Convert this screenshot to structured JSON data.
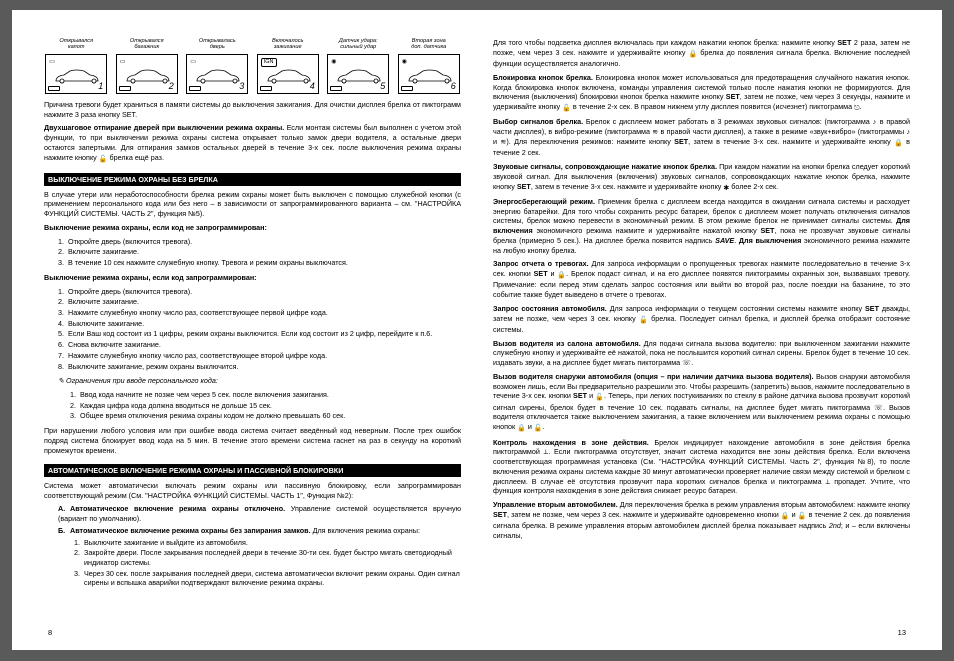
{
  "icons": [
    {
      "caption": "Открывался\nкапот",
      "num": "1",
      "top": "▭"
    },
    {
      "caption": "Открывался\nбагажник",
      "num": "2",
      "top": "▭"
    },
    {
      "caption": "Открывалась\nдверь",
      "num": "3",
      "top": "▭"
    },
    {
      "caption": "Включалось\nзажигание",
      "num": "4",
      "top": "IGN"
    },
    {
      "caption": "Датчик удара:\nсильный удар",
      "num": "5",
      "top": "⚲"
    },
    {
      "caption": "Вторая зона\nдоп. датчика",
      "num": "6",
      "top": "⚲"
    }
  ],
  "lock": "🔒",
  "unlock": "🔓",
  "star": "✱",
  "left": {
    "p1": "Причина тревоги будет храниться в памяти системы до выключения зажигания. Для очистки дисплея брелка от пиктограмм нажмите 3 раза кнопку SET.",
    "p2a": "Двухшаговое отпирание дверей при выключении режима охраны.",
    "p2b": " Если монтаж системы был выполнен с учетом этой функции, то при выключении режима охраны система открывает только замок двери водителя, а остальные двери остаются запертыми. Для отпирания замков остальных дверей в течение 3-х сек. после выключения режима охраны нажмите кнопку ",
    "p2c": " брелка ещё раз.",
    "h1": "ВЫКЛЮЧЕНИЕ РЕЖИМА ОХРАНЫ БЕЗ БРЕЛКА",
    "p3": "В случае утери или неработоспособности брелка режим охраны может быть выключен с помощью служебной кнопки (с применением персонального кода или без него – в зависимости от запрограммированного варианта – см. \"НАСТРОЙКА ФУНКЦИЙ СИСТЕМЫ. ЧАСТЬ 2\", функция №5).",
    "s1": "Выключение режима охраны, если код не запрограммирован:",
    "ol1": [
      "Откройте дверь (включится тревога).",
      "Включите зажигание.",
      "В течение 10 сек нажмите служебную кнопку. Тревога и режим охраны выключатся."
    ],
    "s2": "Выключение режима охраны, если код запрограммирован:",
    "ol2": [
      "Откройте дверь (включится тревога).",
      "Включите зажигание.",
      "Нажмите служебную кнопку число раз, соответствующее первой цифре кода.",
      "Выключите зажигание.",
      "Если Ваш код состоит из 1 цифры, режим охраны выключится. Если код состоит из 2 цифр, перейдите к п.6.",
      "Снова включите зажигание.",
      "Нажмите служебную кнопку число раз, соответствующее второй цифре кода.",
      "Выключите зажигание, режим охраны выключится."
    ],
    "limhd": "Ограничения при вводе персонального кода:",
    "lim": [
      "Ввод кода начните не позже чем через 5 сек. после включения зажигания.",
      "Каждая цифра кода должна вводиться не дольше 15 сек.",
      "Общее время отключения режима охраны кодом не должно превышать 60 сек."
    ],
    "p4": "При нарушении любого условия или при ошибке ввода система считает введённый код неверным. После трех ошибок подряд система блокирует ввод кода на 5 мин. В течение этого времени система гаснет на раз в секунду на короткий промежуток времени.",
    "h2": "АВТОМАТИЧЕСКОЕ ВКЛЮЧЕНИЕ РЕЖИМА ОХРАНЫ И ПАССИВНОЙ БЛОКИРОВКИ",
    "p5": "Система может автоматически включать режим охраны или пассивную блокировку, если запрограммирован соответствующий режим (См. \"НАСТРОЙКА ФУНКЦИЙ СИСТЕМЫ. ЧАСТЬ 1\", Функция №2):",
    "Aa": "А.",
    "Ab": "Автоматическое включение режима охраны отключено.",
    "Ac": " Управление системой осуществляется вручную (вариант по умолчанию).",
    "Ba": "Б.",
    "Bb": "Автоматическое включение режима охраны без запирания замков.",
    "Bc": " Для включения режима охраны:",
    "Bol": [
      "Выключите зажигание и выйдите из автомобиля.",
      "Закройте двери. После закрывания последней двери в течение 30-ти сек. будет быстро мигать светодиодный индикатор системы.",
      "Через 30 сек. после закрывания последней двери, система автоматически включит режим охраны. Один сигнал сирены и вспышка аварийки подтверждают включение режима охраны."
    ],
    "page": "8"
  },
  "right": {
    "p1a": "Для того чтобы подсветка дисплея включалась при каждом нажатии кнопок брелка: нажмите кнопку ",
    "p1b": "SET",
    "p1c": " 2 раза, затем не позже, чем через 3 сек. нажмите и удерживайте кнопку ",
    "p1d": " брелка до появления сигнала брелка. Включение последней функции осуществляется аналогично.",
    "p2a": "Блокировка кнопок брелка.",
    "p2b": " Блокировка кнопок может использоваться для предотвращения случайного нажатия кнопок. Когда блокировка кнопок включена, команды управления системой только после нажатия кнопки не формируются. Для включения (выключения) блокировки кнопок брелка нажмите кнопку ",
    "p2c": "SET",
    "p2d": ", затем не позже, чем через 3 секунды, нажмите и удерживайте кнопку ",
    "p2e": " в течение 2-х сек. В правом нижнем углу дисплея появится (исчезнет) пиктограмма ",
    "p3a": "Выбор сигналов брелка.",
    "p3b": " Брелок с дисплеем может работать в 3 режимах звуковых сигналов: (пиктограмма ",
    "p3c": " в правой части дисплея), в вибро-режиме (пиктограмма ",
    "p3d": " в правой части дисплея), а также в режиме «звук+вибро» (пиктограммы ",
    "p3e": " и ",
    "p3f": "). Для переключения режимов: нажмите кнопку ",
    "p3g": "SET",
    "p3h": ", затем в течение 3-х сек. нажмите и удерживайте кнопку ",
    "p3i": " в течение 2 сек.",
    "p4a": "Звуковые сигналы, сопровождающие нажатие кнопок брелка.",
    "p4b": " При каждом нажатии на кнопки брелка следует короткий звуковой сигнал. Для выключения (включения) звуковых сигналов, сопровождающих нажатие кнопок брелка, нажмите кнопку ",
    "p4c": "SET",
    "p4d": ", затем в течение 3-х сек. нажмите и удерживайте кнопку ",
    "p4e": " более 2-х сек.",
    "p5a": "Энергосберегающий режим.",
    "p5b": " Приемник брелка с дисплеем всегда находится в ожидании сигнала системы и расходует энергию батарейки. Для того чтобы сохранить ресурс батареи, брелок с дисплеем может получать отключения сигналов системы, брелок можно перевести в экономичный режим. В этом режиме брелок не принимает сигналы системы. ",
    "p5c": "Для включения",
    "p5d": " экономичного режима нажмите и удерживайте нажатой кнопку ",
    "p5e": "SET",
    "p5f": ", пока не прозвучат звуковые сигналы брелка (примерно 5 сек.). На дисплее брелка появится надпись ",
    "p5g": ". ",
    "p5h": "Для выключения",
    "p5i": " экономичного режима нажмите на любую кнопку брелка.",
    "p6a": "Запрос отчета о тревогах.",
    "p6b": " Для запроса информации о пропущенных тревогах нажмите последовательно в течение 3-х сек. кнопки ",
    "p6c": "SET",
    "p6d": " и ",
    "p6e": ". Брелок подаст сигнал, и на его дисплее появятся пиктограммы охранных зон, вызвавших тревогу. Примечание: если перед этим сделать запрос состояния или выйти во второй раз, после поездки на базанине, то это событие также будет выведено в отчете о тревогах.",
    "p7a": "Запрос состояния автомобиля.",
    "p7b": " Для запроса информации о текущем состоянии системы нажмите кнопку ",
    "p7c": "SET",
    "p7d": " дважды, затем не позже, чем через 3 сек. кнопку ",
    "p7e": " брелка. Последует сигнал брелка, и дисплей брелка отобразит состояние системы.",
    "p8a": "Вызов водителя из салона автомобиля.",
    "p8b": " Для подачи сигнала вызова водителю: при выключенном зажигании нажмите служебную кнопку и удерживайте её нажатой, пока не послышится короткий сигнал сирены. Брелок будет в течение 10 сек. издавать звуки, а на дисплее будет мигать пиктограмма ",
    "p9a": "Вызов водителя снаружи автомобиля (опция – при наличии датчика вызова водителя).",
    "p9b": " Вызов снаружи автомобиля возможен лишь, если Вы предварительно разрешили это. Чтобы разрешить (запретить) вызов, нажмите последовательно в течение 3-х сек. кнопки ",
    "p9c": "SET",
    "p9d": " и ",
    "p9e": ". Теперь, при легких постукиваниях по стеклу в районе датчика вызова прозвучит короткий сигнал сирены, брелок будет в течение 10 сек. подавать сигналы, на дисплее будет мигать пиктограмма ",
    "p9f": ". Вызов водителя отключается также выключением зажигания, а также включением или выключением режима охраны с помощью кнопок ",
    "p9g": " и ",
    "p10a": "Контроль нахождения в зоне действия.",
    "p10b": " Брелок индицирует нахождение автомобиля в зоне действия брелка пиктограммой ",
    "p10c": ". Если пиктограмма отсутствует, значит система находится вне зоны действия брелка. Если включена соответствующая программная установка (См. \"НАСТРОЙКА ФУНКЦИЙ СИСТЕМЫ. Часть 2\", функция №8), то после включения режима охраны система каждые 30 минут автоматически проверяет наличие связи между системой и брелком с дисплеем. В случае её отсутствия прозвучит пара коротких сигналов брелка и пиктограмма ",
    "p10d": " пропадет. Учтите, что функция контроля нахождения в зоне действия снижает ресурс батареи.",
    "p11a": "Управление вторым автомобилем.",
    "p11b": " Для переключения брелка в режим управления вторым автомобилем: нажмите кнопку ",
    "p11c": "SET",
    "p11d": ", затем не позже, чем через 3 сек. нажмите и удерживайте одновременно кнопки ",
    "p11e": " и ",
    "p11f": " в течение 2 сек. до появления сигнала брелка. В режиме управления вторым автомобилем дисплей брелка показывает надпись ",
    "p11g": "; и – если включены сигналы,",
    "page": "13"
  }
}
